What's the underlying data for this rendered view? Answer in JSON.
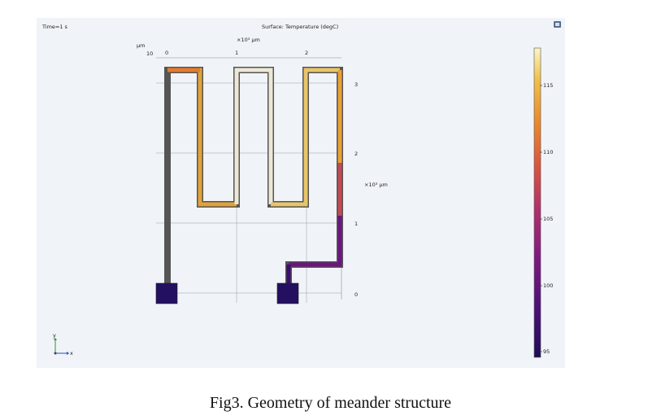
{
  "plot": {
    "time_label": "Time=1 s",
    "title": "Surface: Temperature (degC)",
    "x_unit_label": "×10³ µm",
    "y_unit_label": "×10³ µm",
    "z_unit_label": "µm",
    "z_value": "10",
    "x_ticks": [
      "0",
      "1",
      "2"
    ],
    "y_ticks": [
      "3",
      "2",
      "1",
      "0"
    ],
    "triad": {
      "y": "y",
      "x": "x"
    },
    "export_icon": "image-export-icon"
  },
  "colorbar": {
    "ticks": [
      "115",
      "110",
      "105",
      "100",
      "95"
    ],
    "range": [
      94.5,
      117.5
    ],
    "colormap": [
      "#1e0d55",
      "#4a0f78",
      "#7e1a80",
      "#b0316b",
      "#d9553e",
      "#e98a2c",
      "#f0c24a",
      "#fbf6c8"
    ]
  },
  "caption": "Fig3. Geometry of meander structure"
}
